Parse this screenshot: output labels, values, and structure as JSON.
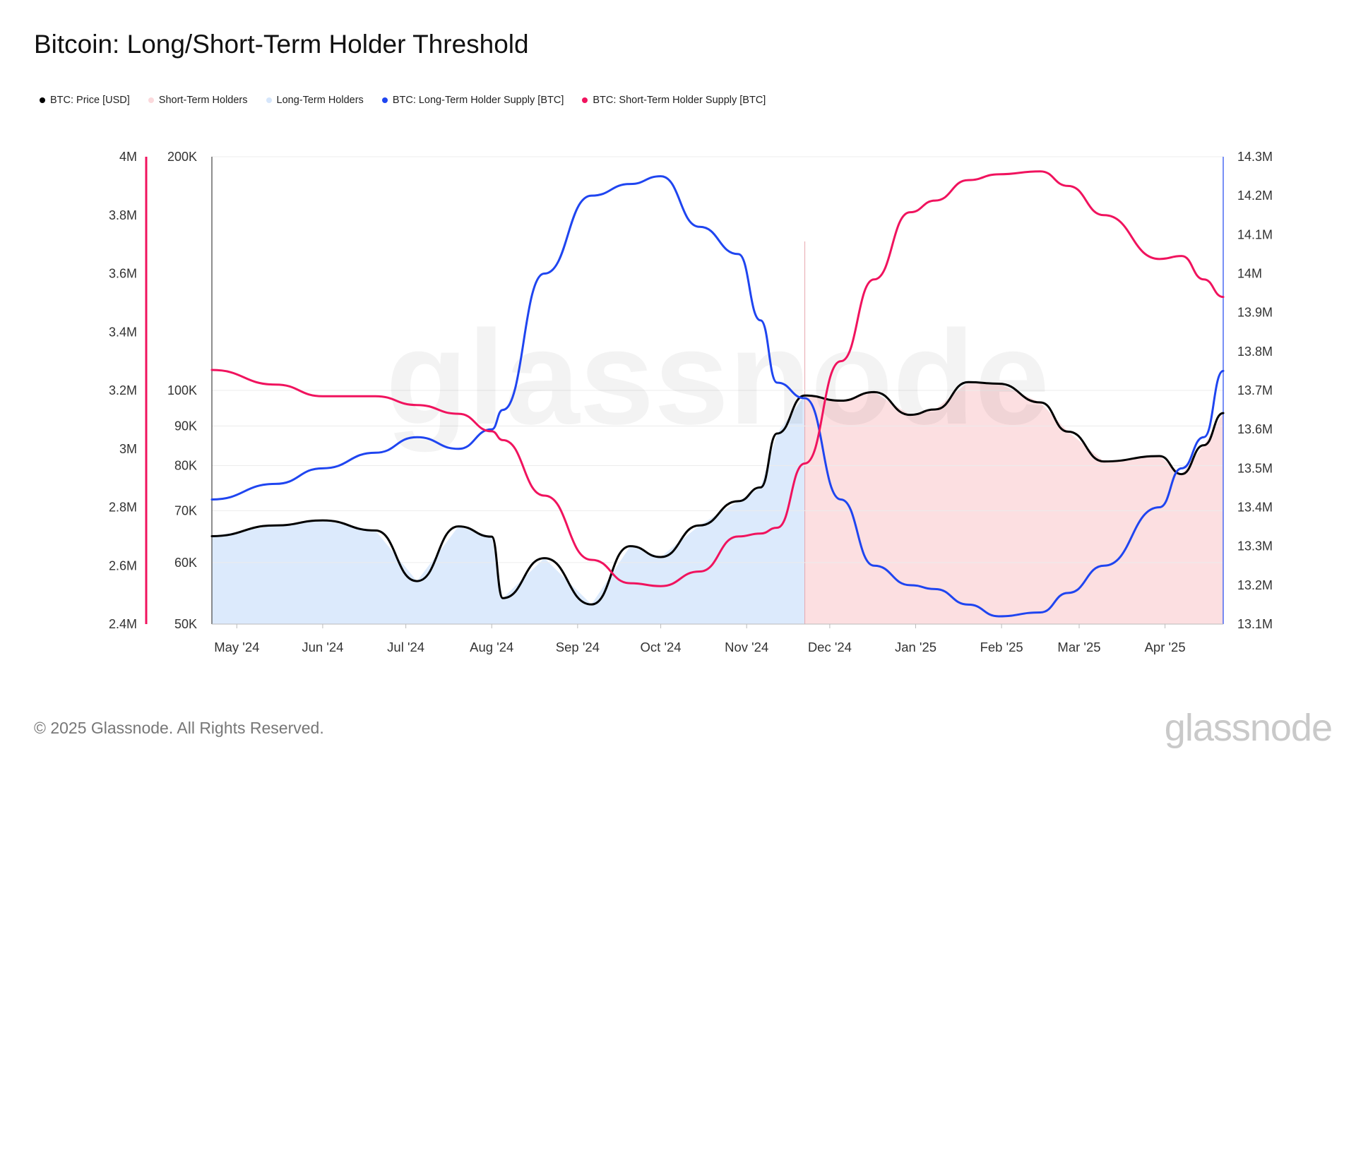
{
  "title": "Bitcoin: Long/Short-Term Holder Threshold",
  "legend": [
    {
      "label": "BTC: Price [USD]",
      "color": "#000000"
    },
    {
      "label": "Short-Term Holders",
      "color": "#fbd9dc"
    },
    {
      "label": "Long-Term Holders",
      "color": "#d6e6fb"
    },
    {
      "label": "BTC: Long-Term Holder Supply [BTC]",
      "color": "#1f45f0"
    },
    {
      "label": "BTC: Short-Term Holder Supply [BTC]",
      "color": "#f0135e"
    }
  ],
  "footer": "© 2025 Glassnode. All Rights Reserved.",
  "brand": "glassnode",
  "chart_data": {
    "type": "line",
    "x_axis_labels": [
      "May '24",
      "Jun '24",
      "Jul '24",
      "Aug '24",
      "Sep '24",
      "Oct '24",
      "Nov '24",
      "Dec '24",
      "Jan '25",
      "Feb '25",
      "Mar '25",
      "Apr '25"
    ],
    "x": [
      "2024-04-22",
      "2024-05-15",
      "2024-06-01",
      "2024-06-20",
      "2024-07-05",
      "2024-07-20",
      "2024-08-01",
      "2024-08-05",
      "2024-08-20",
      "2024-09-06",
      "2024-09-20",
      "2024-10-01",
      "2024-10-15",
      "2024-10-29",
      "2024-11-06",
      "2024-11-12",
      "2024-11-22",
      "2024-12-05",
      "2024-12-17",
      "2024-12-30",
      "2025-01-08",
      "2025-01-20",
      "2025-01-31",
      "2025-02-15",
      "2025-02-25",
      "2025-03-10",
      "2025-03-30",
      "2025-04-07",
      "2025-04-15",
      "2025-04-22"
    ],
    "left_axis_supply": {
      "ticks": [
        "4M",
        "3.8M",
        "3.6M",
        "3.4M",
        "3.2M",
        "3M",
        "2.8M",
        "2.6M",
        "2.4M"
      ],
      "range": [
        2400000,
        4000000
      ]
    },
    "left_axis_price": {
      "ticks": [
        "200K",
        "100K",
        "90K",
        "80K",
        "70K",
        "60K",
        "50K"
      ],
      "scale": "log",
      "range": [
        50000,
        200000
      ]
    },
    "right_axis_supply": {
      "ticks": [
        "14.3M",
        "14.2M",
        "14.1M",
        "14M",
        "13.9M",
        "13.8M",
        "13.7M",
        "13.6M",
        "13.5M",
        "13.4M",
        "13.3M",
        "13.2M",
        "13.1M"
      ],
      "range": [
        13100000,
        14300000
      ]
    },
    "threshold_date": "2024-11-22",
    "series": [
      {
        "name": "BTC: Price [USD]",
        "axis": "price",
        "color": "#000000",
        "values": [
          64900,
          67000,
          68000,
          66000,
          56800,
          66800,
          64800,
          54000,
          60800,
          53000,
          63000,
          61000,
          67000,
          72000,
          75000,
          88000,
          98500,
          97000,
          99500,
          93000,
          94500,
          102500,
          102000,
          96500,
          88500,
          81000,
          82300,
          78000,
          85000,
          93500
        ]
      },
      {
        "name": "BTC: Long-Term Holder Supply [BTC]",
        "axis": "right",
        "color": "#1f45f0",
        "values": [
          13420000,
          13460000,
          13500000,
          13540000,
          13580000,
          13550000,
          13600000,
          13650000,
          14000000,
          14200000,
          14230000,
          14250000,
          14120000,
          14050000,
          13880000,
          13720000,
          13680000,
          13420000,
          13250000,
          13200000,
          13190000,
          13150000,
          13120000,
          13130000,
          13180000,
          13250000,
          13400000,
          13500000,
          13580000,
          13750000
        ]
      },
      {
        "name": "BTC: Short-Term Holder Supply [BTC]",
        "axis": "left",
        "color": "#f0135e",
        "values": [
          3270000,
          3220000,
          3180000,
          3180000,
          3150000,
          3120000,
          3060000,
          3030000,
          2840000,
          2620000,
          2540000,
          2530000,
          2580000,
          2700000,
          2710000,
          2730000,
          2950000,
          3300000,
          3580000,
          3810000,
          3850000,
          3920000,
          3940000,
          3950000,
          3900000,
          3800000,
          3650000,
          3660000,
          3580000,
          3520000
        ]
      }
    ],
    "area_fill": [
      {
        "name": "Long-Term Holders",
        "color": "#d6e6fb",
        "from": "2024-04-22",
        "to": "2024-11-22"
      },
      {
        "name": "Short-Term Holders",
        "color": "#fbd9dc",
        "from": "2024-11-22",
        "to": "2025-04-22"
      }
    ],
    "grid": true,
    "legend_placement": "top-left"
  }
}
